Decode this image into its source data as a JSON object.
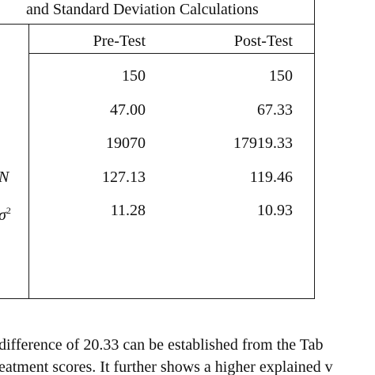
{
  "table": {
    "caption": "and Standard Deviation Calculations",
    "headers": {
      "pre": "Pre-Test",
      "post": "Post-Test"
    },
    "rows": [
      {
        "label": "",
        "pre": "150",
        "post": "150"
      },
      {
        "label": "",
        "pre": "47.00",
        "post": "67.33"
      },
      {
        "label": "",
        "pre": "19070",
        "post": "17919.33"
      },
      {
        "label": "N",
        "pre": "127.13",
        "post": "119.46"
      },
      {
        "label": "σ",
        "label_sup": "2",
        "pre": "11.28",
        "post": "10.93"
      }
    ]
  },
  "paragraph": {
    "line1": "difference of 20.33 can be established from the Tab",
    "line2": "eatment scores. It further shows a higher explained v"
  }
}
